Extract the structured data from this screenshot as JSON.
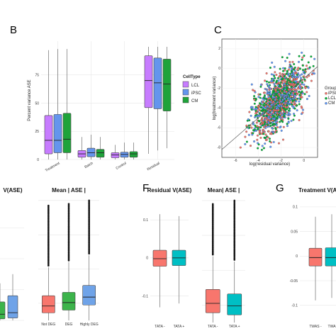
{
  "panel_letters": [
    "B",
    "C",
    "F",
    "G"
  ],
  "colors": {
    "LCL": "#c77cff",
    "iPSC": "#6495ed",
    "CM": "#1fa33a",
    "red": "#f8766d",
    "teal": "#00bfc4",
    "blue": "#6fa3e8",
    "green": "#3cb44b",
    "grid": "#e6e6e6"
  },
  "chart_data": [
    {
      "panel": "B",
      "type": "boxplot",
      "ylabel": "Percent variance ASE",
      "ylim": [
        0,
        105
      ],
      "yticks": [
        0,
        25,
        50,
        75
      ],
      "categories": [
        "Treatment",
        "Batch",
        "Control",
        "Residual"
      ],
      "legend": {
        "title": "CellType",
        "position": "right",
        "entries": [
          "LCL",
          "iPSC",
          "CM"
        ]
      },
      "series": [
        {
          "name": "LCL",
          "boxes": [
            [
              0,
              5,
              17,
              39,
              97
            ],
            [
              0,
              2,
              5,
              8,
              20
            ],
            [
              0,
              1.5,
              4,
              6,
              13
            ],
            [
              5,
              46,
              70,
              92,
              100
            ]
          ]
        },
        {
          "name": "iPSC",
          "boxes": [
            [
              0,
              6,
              17,
              40,
              98
            ],
            [
              0,
              2.5,
              6,
              10,
              22
            ],
            [
              0,
              2,
              4.5,
              6.5,
              15
            ],
            [
              8,
              45,
              68,
              90,
              100
            ]
          ]
        },
        {
          "name": "CM",
          "boxes": [
            [
              0,
              6,
              18,
              41,
              98
            ],
            [
              0,
              2,
              6,
              9,
              20
            ],
            [
              0,
              2,
              5,
              7,
              15
            ],
            [
              10,
              43,
              67,
              89,
              100
            ]
          ]
        }
      ]
    },
    {
      "panel": "C",
      "type": "scatter",
      "xlabel": "log(residual variance)",
      "ylabel": "log(treatment variance)",
      "xticks": [
        -6,
        -4,
        -2,
        0
      ],
      "yticks": [
        -8,
        -6,
        -4,
        -2,
        0,
        2
      ],
      "xlim": [
        -7.2,
        1.2
      ],
      "ylim": [
        -9,
        3
      ],
      "legend": {
        "title": "Group",
        "position": "right",
        "entries": [
          "iPSC",
          "LCL",
          "CM"
        ]
      },
      "point_colors": [
        "#f8766d",
        "#00ba38",
        "#619cff"
      ],
      "diagonal": true
    },
    {
      "panel": "E-left",
      "type": "boxplot",
      "title": "V(ASE)",
      "categories": [
        "",
        ""
      ],
      "boxes": [
        [
          0,
          0.5,
          2,
          6,
          12
        ],
        [
          0,
          0.8,
          2.5,
          8,
          15
        ]
      ],
      "box_colors": [
        "#3cb44b",
        "#6fa3e8"
      ]
    },
    {
      "panel": "E-right",
      "type": "boxplot",
      "title": "Mean | ASE |",
      "categories": [
        "Not DEG",
        "DEG",
        "Highly DEG"
      ],
      "boxes": [
        [
          0,
          0.22,
          0.42,
          0.72,
          1.55
        ],
        [
          0,
          0.3,
          0.52,
          0.82,
          1.7
        ],
        [
          0,
          0.45,
          0.68,
          1.02,
          1.9
        ]
      ],
      "outlier_from": [
        1.6,
        1.75,
        1.95
      ],
      "outlier_to": [
        3.35,
        3.4,
        3.5
      ],
      "box_colors": [
        "#f8766d",
        "#3cb44b",
        "#6fa3e8"
      ]
    },
    {
      "panel": "F-left",
      "type": "boxplot",
      "title": "Residual V(ASE)",
      "yticks": [
        -0.1,
        0,
        0.1
      ],
      "ylim": [
        -0.17,
        0.16
      ],
      "categories": [
        "TATA -",
        "TATA +"
      ],
      "boxes": [
        [
          -0.13,
          -0.022,
          -0.002,
          0.02,
          0.115
        ],
        [
          -0.12,
          -0.02,
          0.0,
          0.02,
          0.11
        ]
      ],
      "box_colors": [
        "#f8766d",
        "#00bfc4"
      ]
    },
    {
      "panel": "F-right",
      "type": "boxplot",
      "title": "Mean| ASE |",
      "categories": [
        "TATA -",
        "TATA +"
      ],
      "boxes": [
        [
          0,
          0.28,
          0.55,
          0.95,
          1.9
        ],
        [
          0,
          0.22,
          0.48,
          0.82,
          1.75
        ]
      ],
      "outlier_from": [
        1.95,
        1.8
      ],
      "outlier_to": [
        3.4,
        3.5
      ],
      "box_colors": [
        "#f8766d",
        "#00bfc4"
      ]
    },
    {
      "panel": "G-left",
      "type": "boxplot",
      "title": "Treatment V(ASE",
      "yticks": [
        -0.1,
        -0.05,
        0.0,
        0.05,
        0.1
      ],
      "ylim": [
        -0.135,
        0.12
      ],
      "categories": [
        "TWAS -",
        "TWA"
      ],
      "boxes": [
        [
          -0.09,
          -0.02,
          -0.003,
          0.016,
          0.08
        ],
        [
          -0.085,
          -0.02,
          -0.003,
          0.017,
          0.085
        ]
      ],
      "box_colors": [
        "#f8766d",
        "#00bfc4"
      ]
    }
  ]
}
